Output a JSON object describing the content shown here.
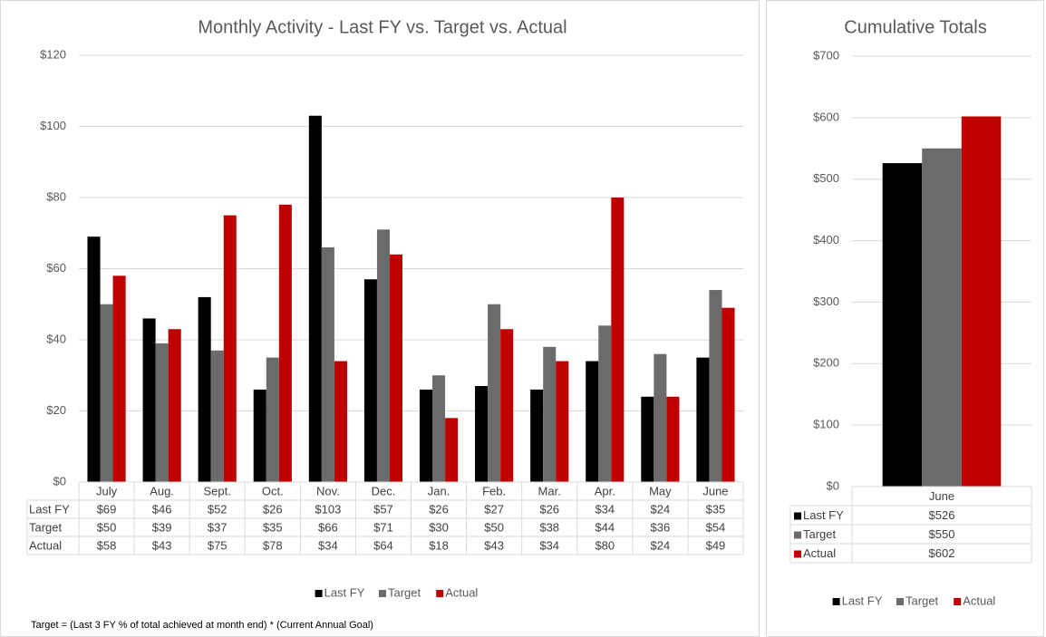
{
  "chart_data": [
    {
      "type": "bar",
      "title": "Monthly Activity -  Last FY vs. Target vs. Actual",
      "categories": [
        "July",
        "Aug.",
        "Sept.",
        "Oct.",
        "Nov.",
        "Dec.",
        "Jan.",
        "Feb.",
        "Mar.",
        "Apr.",
        "May",
        "June"
      ],
      "series": [
        {
          "name": "Last FY",
          "color": "#000000",
          "values": [
            69,
            46,
            52,
            26,
            103,
            57,
            26,
            27,
            26,
            34,
            24,
            35
          ],
          "value_labels": [
            "$69",
            "$46",
            "$52",
            "$26",
            "$103",
            "$57",
            "$26",
            "$27",
            "$26",
            "$34",
            "$24",
            "$35"
          ]
        },
        {
          "name": "Target",
          "color": "#6b6b6b",
          "values": [
            50,
            39,
            37,
            35,
            66,
            71,
            30,
            50,
            38,
            44,
            36,
            54
          ],
          "value_labels": [
            "$50",
            "$39",
            "$37",
            "$35",
            "$66",
            "$71",
            "$30",
            "$50",
            "$38",
            "$44",
            "$36",
            "$54"
          ]
        },
        {
          "name": "Actual",
          "color": "#c00000",
          "values": [
            58,
            43,
            75,
            78,
            34,
            64,
            18,
            43,
            34,
            80,
            24,
            49
          ],
          "value_labels": [
            "$58",
            "$43",
            "$75",
            "$78",
            "$34",
            "$64",
            "$18",
            "$43",
            "$34",
            "$80",
            "$24",
            "$49"
          ]
        }
      ],
      "ylim": [
        0,
        120
      ],
      "yticks": [
        {
          "value": 0,
          "label": "$0"
        },
        {
          "value": 20,
          "label": "$20"
        },
        {
          "value": 40,
          "label": "$40"
        },
        {
          "value": 60,
          "label": "$60"
        },
        {
          "value": 80,
          "label": "$80"
        },
        {
          "value": 100,
          "label": "$100"
        },
        {
          "value": 120,
          "label": "$120"
        }
      ],
      "grid": true,
      "legend": "bottom",
      "annotation": "Target = (Last 3 FY % of total achieved at month end) * (Current Annual Goal)"
    },
    {
      "type": "bar",
      "title": "Cumulative Totals",
      "categories": [
        "June"
      ],
      "series": [
        {
          "name": "Last FY",
          "color": "#000000",
          "values": [
            526
          ],
          "value_labels": [
            "$526"
          ]
        },
        {
          "name": "Target",
          "color": "#6b6b6b",
          "values": [
            550
          ],
          "value_labels": [
            "$550"
          ]
        },
        {
          "name": "Actual",
          "color": "#c00000",
          "values": [
            602
          ],
          "value_labels": [
            "$602"
          ]
        }
      ],
      "ylim": [
        0,
        700
      ],
      "yticks": [
        {
          "value": 0,
          "label": "$0"
        },
        {
          "value": 100,
          "label": "$100"
        },
        {
          "value": 200,
          "label": "$200"
        },
        {
          "value": 300,
          "label": "$300"
        },
        {
          "value": 400,
          "label": "$400"
        },
        {
          "value": 500,
          "label": "$500"
        },
        {
          "value": 600,
          "label": "$600"
        },
        {
          "value": 700,
          "label": "$700"
        }
      ],
      "grid": true,
      "legend": "bottom"
    }
  ]
}
